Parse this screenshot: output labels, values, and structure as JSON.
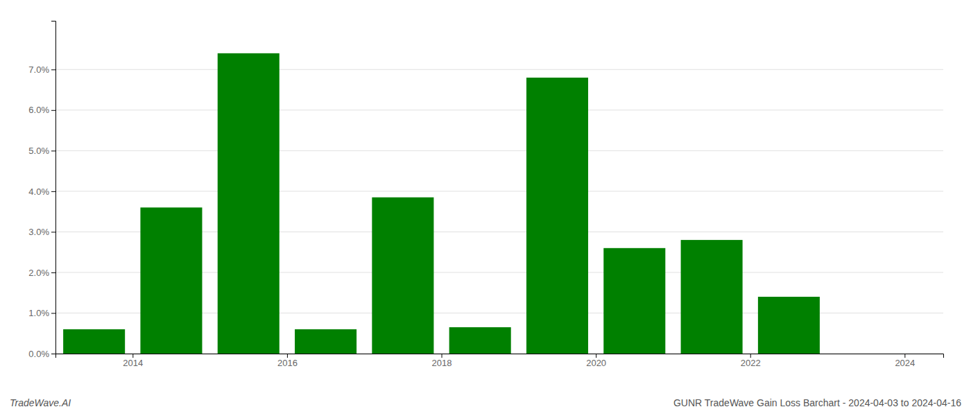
{
  "chart_data": {
    "type": "bar",
    "title": "GUNR TradeWave Gain Loss Barchart - 2024-04-03 to 2024-04-16",
    "annotations": [
      "TradeWave.AI"
    ],
    "x": [
      2014,
      2015,
      2016,
      2017,
      2018,
      2019,
      2020,
      2021,
      2022,
      2023
    ],
    "values": [
      0.006,
      0.036,
      0.074,
      0.006,
      0.0385,
      0.0065,
      0.068,
      0.026,
      0.028,
      0.014
    ],
    "color": "#008000",
    "xlim": [
      2013.5,
      2025.0
    ],
    "xticks": [
      {
        "value": 2014.5,
        "label": "2014"
      },
      {
        "value": 2016.5,
        "label": "2016"
      },
      {
        "value": 2018.5,
        "label": "2018"
      },
      {
        "value": 2020.5,
        "label": "2020"
      },
      {
        "value": 2022.5,
        "label": "2022"
      },
      {
        "value": 2024.5,
        "label": "2024"
      }
    ],
    "ylim": [
      0.0,
      0.082
    ],
    "yticks": [
      {
        "value": 0.0,
        "label": "0.0%"
      },
      {
        "value": 0.01,
        "label": "1.0%"
      },
      {
        "value": 0.02,
        "label": "2.0%"
      },
      {
        "value": 0.03,
        "label": "3.0%"
      },
      {
        "value": 0.04,
        "label": "4.0%"
      },
      {
        "value": 0.05,
        "label": "5.0%"
      },
      {
        "value": 0.06,
        "label": "6.0%"
      },
      {
        "value": 0.07,
        "label": "7.0%"
      }
    ],
    "grid": true
  }
}
